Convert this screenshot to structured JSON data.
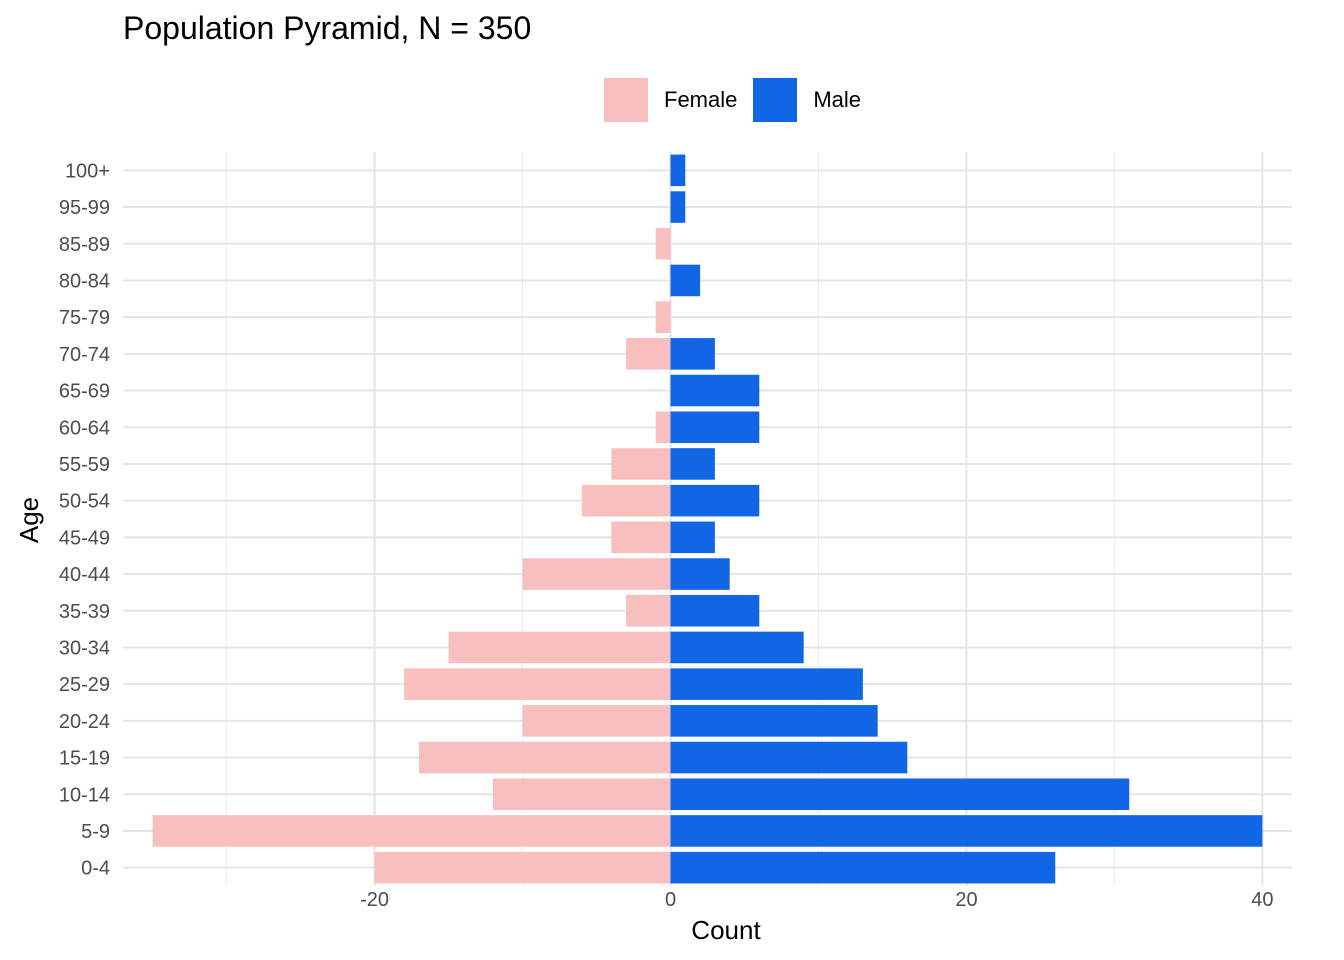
{
  "chart_data": {
    "type": "bar",
    "orientation": "horizontal",
    "title": "Population Pyramid, N = 350",
    "xlabel": "Count",
    "ylabel": "Age",
    "xlim": [
      -37,
      42
    ],
    "x_ticks": [
      -20,
      0,
      20,
      40
    ],
    "grid": true,
    "legend_position": "top",
    "categories": [
      "0-4",
      "5-9",
      "10-14",
      "15-19",
      "20-24",
      "25-29",
      "30-34",
      "35-39",
      "40-44",
      "45-49",
      "50-54",
      "55-59",
      "60-64",
      "65-69",
      "70-74",
      "75-79",
      "80-84",
      "85-89",
      "95-99",
      "100+"
    ],
    "series": [
      {
        "name": "Female",
        "color": "#f8bfbf",
        "values": [
          -20,
          -35,
          -12,
          -17,
          -10,
          -18,
          -15,
          -3,
          -10,
          -4,
          -6,
          -4,
          -1,
          0,
          -3,
          -1,
          0,
          -1,
          0,
          0
        ]
      },
      {
        "name": "Male",
        "color": "#1066e4",
        "values": [
          26,
          40,
          31,
          16,
          14,
          13,
          9,
          6,
          4,
          3,
          6,
          3,
          6,
          6,
          3,
          0,
          2,
          0,
          1,
          1
        ]
      }
    ]
  }
}
